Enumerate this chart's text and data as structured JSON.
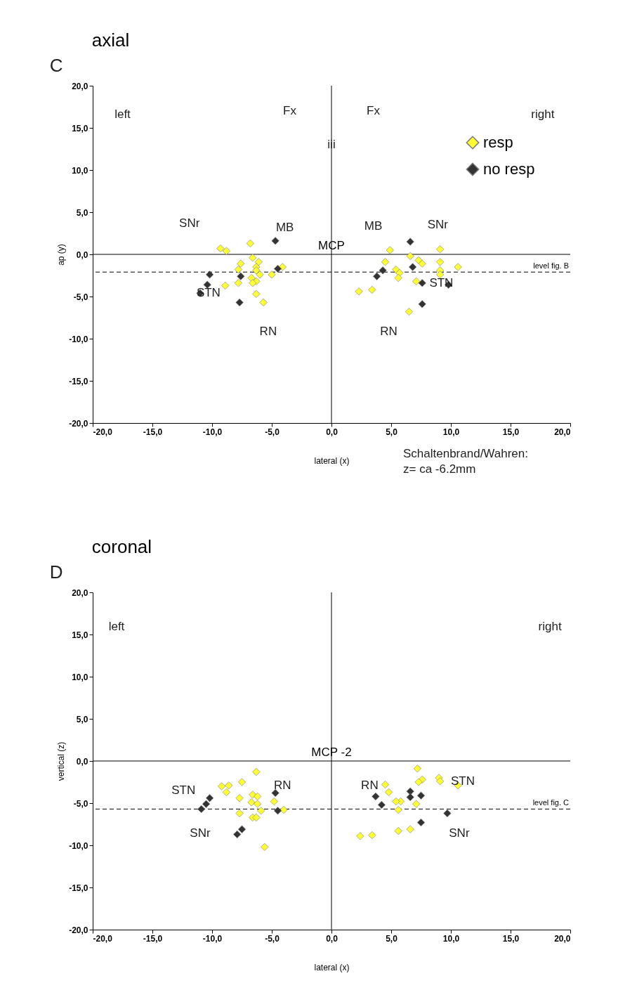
{
  "chart_data": [
    {
      "type": "scatter",
      "title": "axial",
      "xlabel": "lateral (x)",
      "ylabel": "ap (y)",
      "marker": "diamond",
      "grid": false,
      "legend": "top right",
      "xlim": [
        -20,
        20
      ],
      "ylim": [
        -20,
        20
      ],
      "xticks": [
        {
          "value": -20,
          "label": "-20,0"
        },
        {
          "value": -15,
          "label": "-15,0"
        },
        {
          "value": -10,
          "label": "-10,0"
        },
        {
          "value": -5,
          "label": "-5,0"
        },
        {
          "value": 0,
          "label": "0,0"
        },
        {
          "value": 5,
          "label": "5,0"
        },
        {
          "value": 10,
          "label": "10,0"
        },
        {
          "value": 15,
          "label": "15,0"
        },
        {
          "value": 20,
          "label": "20,0"
        }
      ],
      "yticks": [
        {
          "value": -20,
          "label": "-20,0"
        },
        {
          "value": -15,
          "label": "-15,0"
        },
        {
          "value": -10,
          "label": "-10,0"
        },
        {
          "value": -5,
          "label": "-5,0"
        },
        {
          "value": 0,
          "label": "0,0"
        },
        {
          "value": 5,
          "label": "5,0"
        },
        {
          "value": 10,
          "label": "10,0"
        },
        {
          "value": 15,
          "label": "15,0"
        },
        {
          "value": 20,
          "label": "20,0"
        }
      ],
      "series": [
        {
          "name": "resp",
          "color": "#ffff33",
          "x": [
            -9.3,
            -8.8,
            -6.8,
            -6.6,
            -6.1,
            -7.6,
            -7.8,
            -6.3,
            -6.3,
            -6.0,
            -4.1,
            -5.0,
            -6.7,
            -6.3,
            -7.8,
            -8.9,
            -6.3,
            -5.7,
            -6.6,
            4.9,
            9.1,
            4.5,
            6.6,
            7.3,
            7.6,
            9.1,
            10.6,
            5.4,
            5.7,
            5.6,
            9.1,
            9.1,
            7.1,
            2.3,
            3.4,
            6.5
          ],
          "values": [
            0.7,
            0.4,
            1.3,
            -0.4,
            -0.9,
            -1.1,
            -1.8,
            -1.5,
            -1.9,
            -2.4,
            -1.5,
            -2.4,
            -2.8,
            -3.2,
            -3.4,
            -3.7,
            -4.7,
            -5.7,
            -3.4,
            0.5,
            0.6,
            -0.9,
            -0.2,
            -0.7,
            -1.1,
            -0.9,
            -1.5,
            -1.8,
            -2.2,
            -2.8,
            -1.9,
            -2.4,
            -3.2,
            -4.4,
            -4.2,
            -6.8
          ]
        },
        {
          "name": "no resp",
          "color": "#333333",
          "x": [
            -4.7,
            -10.2,
            -7.6,
            -10.4,
            -11.0,
            -7.7,
            -4.5,
            6.6,
            6.8,
            4.3,
            3.8,
            7.6,
            9.8,
            7.6
          ],
          "values": [
            1.6,
            -2.4,
            -2.6,
            -3.6,
            -4.6,
            -5.7,
            -1.7,
            1.5,
            -1.5,
            -1.9,
            -2.6,
            -3.4,
            -3.6,
            -5.9
          ]
        }
      ],
      "ref_lines": [
        {
          "axis": "y",
          "value": 0,
          "label": "MCP",
          "line_style": "solid"
        },
        {
          "axis": "y",
          "value": -2.1,
          "label": "level fig. B",
          "line_style": "dashed"
        },
        {
          "axis": "x",
          "value": 0,
          "line_style": "solid"
        }
      ],
      "annotations": [
        "C",
        "Schaltenbrand/Wahren:\nz= ca -6.2mm",
        "left",
        "right",
        "Fx",
        "Fx",
        "iii",
        "MB",
        "MB",
        "SNr",
        "SNr",
        "STN",
        "STN",
        "RN",
        "RN"
      ]
    },
    {
      "type": "scatter",
      "title": "coronal",
      "xlabel": "lateral (x)",
      "ylabel": "vertical (z)",
      "marker": "diamond",
      "grid": false,
      "xlim": [
        -20,
        20
      ],
      "ylim": [
        -20,
        20
      ],
      "xticks": [
        {
          "value": -20,
          "label": "-20,0"
        },
        {
          "value": -15,
          "label": "-15,0"
        },
        {
          "value": -10,
          "label": "-10,0"
        },
        {
          "value": -5,
          "label": "-5,0"
        },
        {
          "value": 0,
          "label": "0,0"
        },
        {
          "value": 5,
          "label": "5,0"
        },
        {
          "value": 10,
          "label": "10,0"
        },
        {
          "value": 15,
          "label": "15,0"
        },
        {
          "value": 20,
          "label": "20,0"
        }
      ],
      "yticks": [
        {
          "value": -20,
          "label": "-20,0"
        },
        {
          "value": -15,
          "label": "-15,0"
        },
        {
          "value": -10,
          "label": "-10,0"
        },
        {
          "value": -5,
          "label": "-5,0"
        },
        {
          "value": 0,
          "label": "0,0"
        },
        {
          "value": 5,
          "label": "5,0"
        },
        {
          "value": 10,
          "label": "10,0"
        },
        {
          "value": 15,
          "label": "15,0"
        },
        {
          "value": 20,
          "label": "20,0"
        }
      ],
      "series": [
        {
          "color": "#ffff33",
          "x": [
            -6.3,
            -9.2,
            -8.6,
            -8.8,
            -7.5,
            -7.7,
            -6.6,
            -6.2,
            -6.7,
            -6.2,
            -5.9,
            -7.7,
            -6.6,
            -6.3,
            -4.8,
            -4.0,
            -5.6,
            7.2,
            4.5,
            4.8,
            7.6,
            7.3,
            9.0,
            9.1,
            10.6,
            5.8,
            5.4,
            5.6,
            7.1,
            5.6,
            6.6,
            2.4,
            3.4
          ],
          "values": [
            -1.3,
            -3.0,
            -2.9,
            -3.7,
            -2.5,
            -4.4,
            -4.0,
            -4.2,
            -4.9,
            -5.1,
            -5.9,
            -6.2,
            -6.7,
            -6.7,
            -4.8,
            -5.8,
            -10.2,
            -0.9,
            -2.8,
            -3.7,
            -2.2,
            -2.5,
            -2.0,
            -2.4,
            -2.9,
            -4.8,
            -4.8,
            -5.8,
            -5.1,
            -8.3,
            -8.1,
            -8.9,
            -8.8
          ]
        },
        {
          "color": "#333333",
          "x": [
            -10.2,
            -10.5,
            -10.9,
            -7.5,
            -7.9,
            -4.7,
            -4.5,
            3.7,
            4.2,
            6.6,
            6.6,
            7.5,
            7.5,
            9.7
          ],
          "values": [
            -4.4,
            -5.1,
            -5.7,
            -8.1,
            -8.7,
            -3.8,
            -5.9,
            -4.2,
            -5.2,
            -3.6,
            -4.3,
            -4.1,
            -7.3,
            -6.2
          ]
        }
      ],
      "ref_lines": [
        {
          "axis": "y",
          "value": 0,
          "label": "MCP -2",
          "line_style": "solid"
        },
        {
          "axis": "y",
          "value": -5.7,
          "label": "level fig. C",
          "line_style": "dashed"
        },
        {
          "axis": "x",
          "value": 0,
          "line_style": "solid"
        }
      ],
      "annotations": [
        "D",
        "left",
        "right",
        "STN",
        "SNr",
        "RN",
        "RN",
        "STN",
        "SNr"
      ]
    }
  ]
}
